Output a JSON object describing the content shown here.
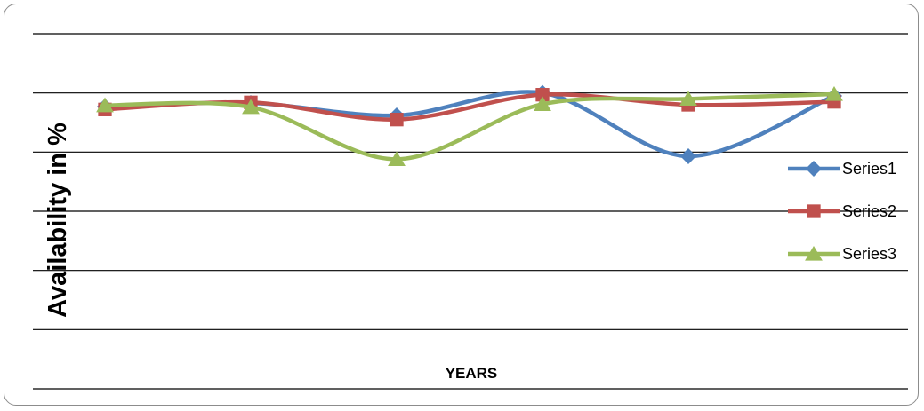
{
  "chart_data": {
    "type": "line",
    "title": "",
    "xlabel": "YEARS",
    "ylabel": "Availability in %",
    "categories": [
      "",
      "",
      "",
      "",
      "",
      ""
    ],
    "ylim": [
      0,
      6
    ],
    "grid": true,
    "smooth": true,
    "legend_position": "right",
    "series": [
      {
        "name": "Series1",
        "color": "#4F81BD",
        "marker": "diamond",
        "values": [
          4.77,
          4.83,
          4.62,
          5.0,
          3.93,
          4.95
        ]
      },
      {
        "name": "Series2",
        "color": "#C0504D",
        "marker": "square",
        "values": [
          4.72,
          4.84,
          4.55,
          4.97,
          4.8,
          4.85
        ]
      },
      {
        "name": "Series3",
        "color": "#9BBB59",
        "marker": "triangle",
        "values": [
          4.79,
          4.76,
          3.88,
          4.81,
          4.9,
          4.98
        ]
      }
    ]
  }
}
